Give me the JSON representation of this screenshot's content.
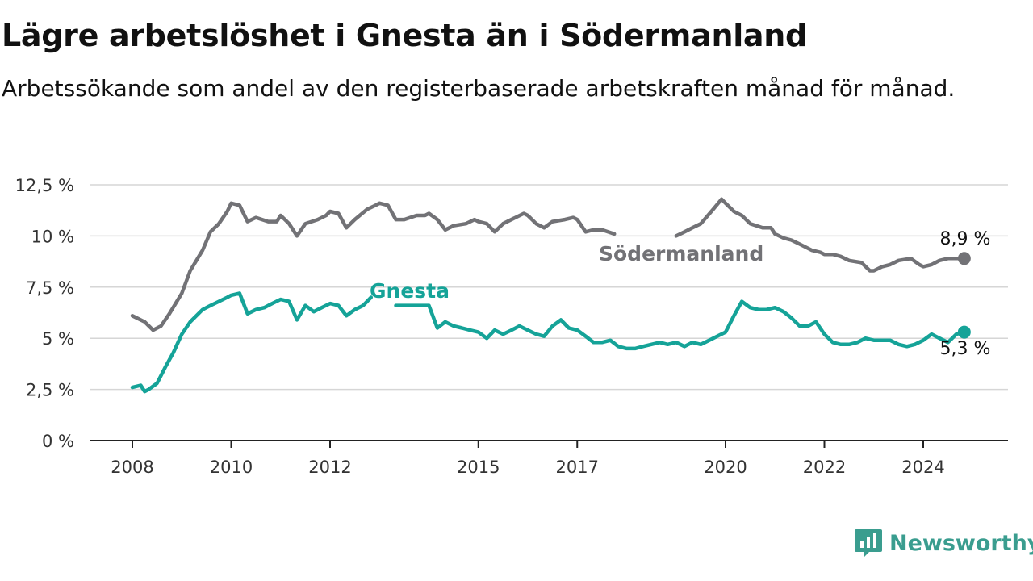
{
  "title": "Lägre arbetslöshet i Gnesta än i Södermanland",
  "subtitle": "Arbetssökande som andel av den registerbaserade arbetskraften månad för månad.",
  "brand": {
    "name": "Newsworthy",
    "color": "#3a9d8f"
  },
  "chart_data": {
    "type": "line",
    "x_tick_labels": [
      "2008",
      "2010",
      "2012",
      "2015",
      "2017",
      "2020",
      "2022",
      "2024"
    ],
    "y_tick_labels": [
      "0 %",
      "2,5 %",
      "5 %",
      "7,5 %",
      "10 %",
      "12,5 %"
    ],
    "ylim": [
      0,
      12.5
    ],
    "grid": "horizontal",
    "series": [
      {
        "name": "Södermanland",
        "color": "#727276",
        "end_label": "8,9 %",
        "x": [
          2008.0,
          2008.25,
          2008.42,
          2008.58,
          2008.75,
          2009.0,
          2009.17,
          2009.42,
          2009.58,
          2009.75,
          2009.92,
          2010.0,
          2010.17,
          2010.33,
          2010.5,
          2010.75,
          2010.92,
          2011.0,
          2011.17,
          2011.33,
          2011.5,
          2011.75,
          2011.92,
          2012.0,
          2012.17,
          2012.33,
          2012.5,
          2012.75,
          2012.92,
          2013.0,
          2013.17,
          2013.33,
          2013.5,
          2013.75,
          2013.92,
          2014.0,
          2014.17,
          2014.33,
          2014.5,
          2014.75,
          2014.92,
          2015.0,
          2015.17,
          2015.33,
          2015.5,
          2015.75,
          2015.92,
          2016.0,
          2016.17,
          2016.33,
          2016.5,
          2016.75,
          2016.92,
          2017.0,
          2017.17,
          2017.33,
          2017.5,
          2017.75,
          2017.92,
          2018.0,
          2018.17,
          2018.33,
          2018.5,
          2018.75,
          2018.92,
          2019.0,
          2019.17,
          2019.33,
          2019.5,
          2019.75,
          2019.92,
          2020.0,
          2020.17,
          2020.33,
          2020.5,
          2020.75,
          2020.92,
          2021.0,
          2021.17,
          2021.33,
          2021.5,
          2021.75,
          2021.92,
          2022.0,
          2022.17,
          2022.33,
          2022.5,
          2022.75,
          2022.92,
          2023.0,
          2023.17,
          2023.33,
          2023.5,
          2023.75,
          2023.92,
          2024.0,
          2024.17,
          2024.33,
          2024.5,
          2024.67,
          2024.83
        ],
        "y": [
          6.1,
          5.8,
          5.4,
          5.6,
          6.2,
          7.2,
          8.3,
          9.3,
          10.2,
          10.6,
          11.2,
          11.6,
          11.5,
          10.7,
          10.9,
          10.7,
          10.7,
          11.0,
          10.6,
          10.0,
          10.6,
          10.8,
          11.0,
          11.2,
          11.1,
          10.4,
          10.8,
          11.3,
          11.5,
          11.6,
          11.5,
          10.8,
          10.8,
          11.0,
          11.0,
          11.1,
          10.8,
          10.3,
          10.5,
          10.6,
          10.8,
          10.7,
          10.6,
          10.2,
          10.6,
          10.9,
          11.1,
          11.0,
          10.6,
          10.4,
          10.7,
          10.8,
          10.9,
          10.8,
          10.2,
          10.3,
          10.3,
          10.1,
          null,
          null,
          null,
          null,
          null,
          null,
          null,
          10.0,
          10.2,
          10.4,
          10.6,
          11.3,
          11.8,
          11.6,
          11.2,
          11.0,
          10.6,
          10.4,
          10.4,
          10.1,
          9.9,
          9.8,
          9.6,
          9.3,
          9.2,
          9.1,
          9.1,
          9.0,
          8.8,
          8.7,
          8.3,
          8.3,
          8.5,
          8.6,
          8.8,
          8.9,
          8.6,
          8.5,
          8.6,
          8.8,
          8.9,
          8.9,
          8.9
        ]
      },
      {
        "name": "Gnesta",
        "color": "#15a398",
        "end_label": "5,3 %",
        "x": [
          2008.0,
          2008.17,
          2008.25,
          2008.33,
          2008.5,
          2008.67,
          2008.83,
          2009.0,
          2009.17,
          2009.42,
          2009.58,
          2009.75,
          2009.92,
          2010.0,
          2010.17,
          2010.33,
          2010.5,
          2010.67,
          2010.83,
          2011.0,
          2011.17,
          2011.33,
          2011.5,
          2011.67,
          2011.83,
          2012.0,
          2012.17,
          2012.33,
          2012.5,
          2012.67,
          2012.83,
          2013.0,
          2013.17,
          2013.33,
          2013.5,
          2013.67,
          2013.83,
          2014.0,
          2014.17,
          2014.33,
          2014.5,
          2014.67,
          2014.83,
          2015.0,
          2015.17,
          2015.33,
          2015.5,
          2015.67,
          2015.83,
          2016.0,
          2016.17,
          2016.33,
          2016.5,
          2016.67,
          2016.83,
          2017.0,
          2017.17,
          2017.33,
          2017.5,
          2017.67,
          2017.83,
          2018.0,
          2018.17,
          2018.33,
          2018.5,
          2018.67,
          2018.83,
          2019.0,
          2019.17,
          2019.33,
          2019.5,
          2019.67,
          2019.83,
          2020.0,
          2020.17,
          2020.33,
          2020.5,
          2020.67,
          2020.83,
          2021.0,
          2021.17,
          2021.33,
          2021.5,
          2021.67,
          2021.83,
          2022.0,
          2022.17,
          2022.33,
          2022.5,
          2022.67,
          2022.83,
          2023.0,
          2023.17,
          2023.33,
          2023.5,
          2023.67,
          2023.83,
          2024.0,
          2024.17,
          2024.33,
          2024.5,
          2024.67,
          2024.83
        ],
        "y": [
          2.6,
          2.7,
          2.4,
          2.5,
          2.8,
          3.6,
          4.3,
          5.2,
          5.8,
          6.4,
          6.6,
          6.8,
          7.0,
          7.1,
          7.2,
          6.2,
          6.4,
          6.5,
          6.7,
          6.9,
          6.8,
          5.9,
          6.6,
          6.3,
          6.5,
          6.7,
          6.6,
          6.1,
          6.4,
          6.6,
          7.0,
          null,
          null,
          6.6,
          6.6,
          6.6,
          6.6,
          6.6,
          5.5,
          5.8,
          5.6,
          5.5,
          5.4,
          5.3,
          5.0,
          5.4,
          5.2,
          5.4,
          5.6,
          5.4,
          5.2,
          5.1,
          5.6,
          5.9,
          5.5,
          5.4,
          5.1,
          4.8,
          4.8,
          4.9,
          4.6,
          4.5,
          4.5,
          4.6,
          4.7,
          4.8,
          4.7,
          4.8,
          4.6,
          4.8,
          4.7,
          4.9,
          5.1,
          5.3,
          6.1,
          6.8,
          6.5,
          6.4,
          6.4,
          6.5,
          6.3,
          6.0,
          5.6,
          5.6,
          5.8,
          5.2,
          4.8,
          4.7,
          4.7,
          4.8,
          5.0,
          4.9,
          4.9,
          4.9,
          4.7,
          4.6,
          4.7,
          4.9,
          5.2,
          5.0,
          4.8,
          5.2,
          5.3
        ]
      }
    ]
  }
}
